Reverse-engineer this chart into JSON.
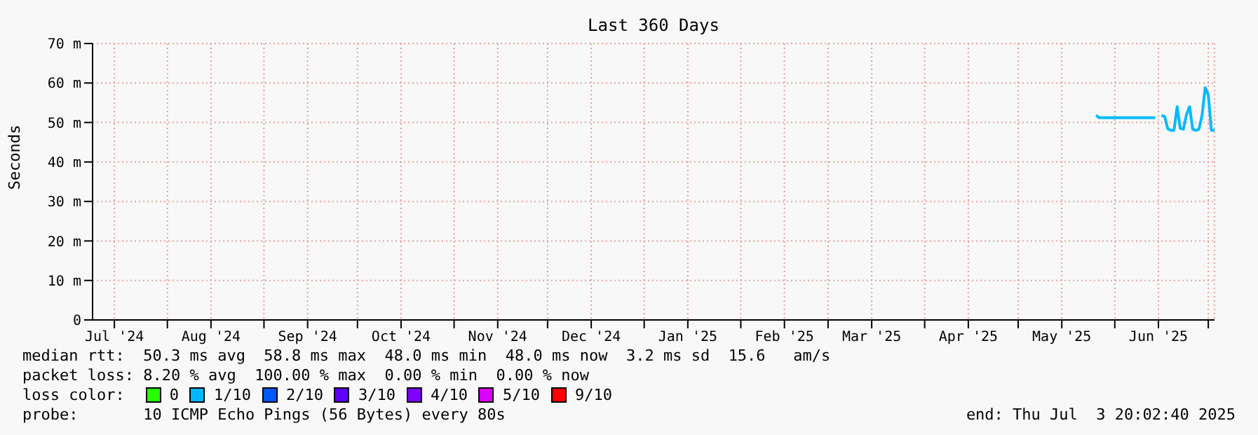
{
  "chart_data": {
    "type": "line",
    "title": "Last 360 Days",
    "ylabel": "Seconds",
    "x": [
      "2025-05-26",
      "2025-05-27",
      "2025-06-14",
      "2025-06-15",
      "2025-06-16",
      "2025-06-17",
      "2025-06-18",
      "2025-06-19",
      "2025-06-20",
      "2025-06-21",
      "2025-06-22",
      "2025-06-23",
      "2025-06-24",
      "2025-06-25",
      "2025-06-26",
      "2025-06-27",
      "2025-06-28",
      "2025-06-29",
      "2025-06-30",
      "2025-07-01",
      "2025-07-02",
      "2025-07-03"
    ],
    "series": [
      {
        "color": "#00bbff",
        "values": [
          51.8,
          51.2,
          51.2,
          null,
          51.8,
          51.5,
          48.4,
          48.0,
          48.0,
          54.0,
          48.5,
          48.3,
          52.0,
          54.0,
          48.3,
          48.0,
          48.3,
          51.8,
          58.8,
          57.0,
          48.0,
          48.0
        ]
      }
    ],
    "xlim": [
      "2024-07-08",
      "2025-07-03"
    ],
    "xticks": [
      {
        "value": "2024-07-15",
        "label": "Jul '24"
      },
      {
        "value": "2024-08-01",
        "label": null
      },
      {
        "value": "2024-08-15",
        "label": "Aug '24"
      },
      {
        "value": "2024-09-01",
        "label": null
      },
      {
        "value": "2024-09-15",
        "label": "Sep '24"
      },
      {
        "value": "2024-10-01",
        "label": null
      },
      {
        "value": "2024-10-15",
        "label": "Oct '24"
      },
      {
        "value": "2024-11-01",
        "label": null
      },
      {
        "value": "2024-11-15",
        "label": "Nov '24"
      },
      {
        "value": "2024-12-01",
        "label": null
      },
      {
        "value": "2024-12-15",
        "label": "Dec '24"
      },
      {
        "value": "2025-01-01",
        "label": null
      },
      {
        "value": "2025-01-15",
        "label": "Jan '25"
      },
      {
        "value": "2025-02-01",
        "label": null
      },
      {
        "value": "2025-02-15",
        "label": "Feb '25"
      },
      {
        "value": "2025-03-01",
        "label": null
      },
      {
        "value": "2025-03-15",
        "label": "Mar '25"
      },
      {
        "value": "2025-04-01",
        "label": null
      },
      {
        "value": "2025-04-15",
        "label": "Apr '25"
      },
      {
        "value": "2025-05-01",
        "label": null
      },
      {
        "value": "2025-05-15",
        "label": "May '25"
      },
      {
        "value": "2025-06-01",
        "label": null
      },
      {
        "value": "2025-06-15",
        "label": "Jun '25"
      },
      {
        "value": "2025-07-01",
        "label": null
      }
    ],
    "ylim": [
      0,
      70
    ],
    "yticks": [
      0,
      {
        "value": 10,
        "label": "10 m"
      },
      {
        "value": 20,
        "label": "20 m"
      },
      {
        "value": 30,
        "label": "30 m"
      },
      {
        "value": 40,
        "label": "40 m"
      },
      {
        "value": 50,
        "label": "50 m"
      },
      {
        "value": 60,
        "label": "60 m"
      },
      {
        "value": 70,
        "label": "70 m"
      }
    ],
    "grid": true,
    "marker": "none",
    "line_style": "solid",
    "annotations": [
      "median rtt:  50.3 ms avg  58.8 ms max  48.0 ms min  48.0 ms now  3.2 ms sd  15.6   am/s",
      "packet loss: 8.20 % avg  100.00 % max  0.00 % min  0.00 % now",
      "loss color:",
      "0",
      "1/10",
      "2/10",
      "3/10",
      "4/10",
      "5/10",
      "9/10",
      "probe:       10 ICMP Echo Pings (56 Bytes) every 80s",
      "end: Thu Jul  3 20:02:40 2025"
    ]
  }
}
